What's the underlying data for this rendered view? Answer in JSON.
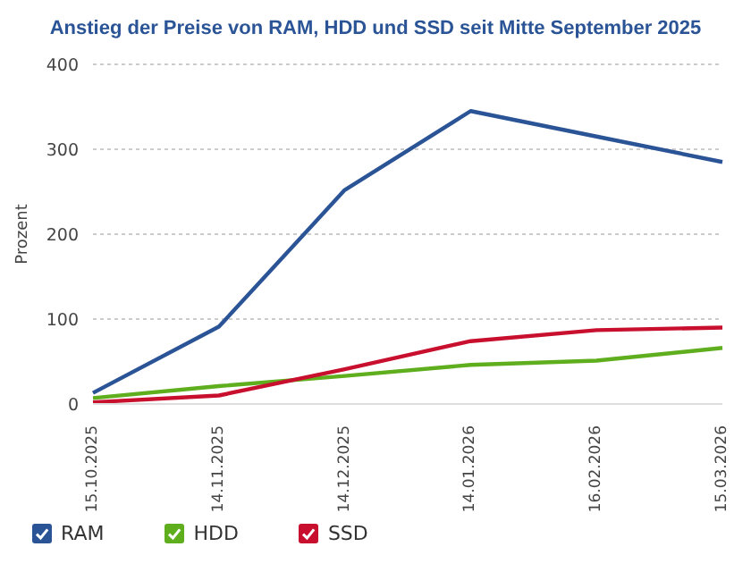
{
  "chart_data": {
    "type": "line",
    "title": "Anstieg der Preise von RAM, HDD und SSD seit Mitte September 2025",
    "ylabel": "Prozent",
    "categories": [
      "15.10.2025",
      "14.11.2025",
      "14.12.2025",
      "14.01.2026",
      "16.02.2026",
      "15.03.2026"
    ],
    "series": [
      {
        "name": "RAM",
        "color": "#2a5496",
        "values": [
          13,
          91,
          252,
          345,
          315,
          285
        ]
      },
      {
        "name": "HDD",
        "color": "#5fae1e",
        "values": [
          7,
          21,
          33,
          46,
          51,
          66
        ]
      },
      {
        "name": "SSD",
        "color": "#c8102e",
        "values": [
          2,
          10,
          41,
          74,
          87,
          90
        ]
      }
    ],
    "ylim": [
      0,
      400
    ],
    "yticks": [
      0,
      100,
      200,
      300,
      400
    ],
    "grid": "y",
    "legend": "bottom",
    "marker": "none",
    "line_style": "solid"
  }
}
